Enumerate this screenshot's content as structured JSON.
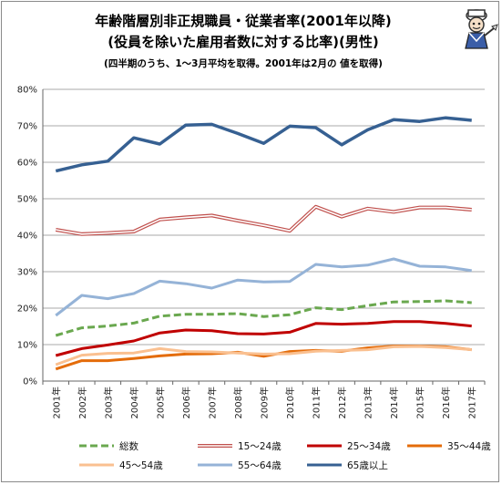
{
  "title_line1": "年齢階層別非正規職員・従業者率(2001年以降)",
  "title_line2": "(役員を除いた雇用者数に対する比率)(男性)",
  "subtitle": "(四半期のうち、1～3月平均を取得。2001年は2月の 値を取得)",
  "colors": {
    "total": "#6aa84f",
    "age15_24": "#c0504d",
    "age25_34": "#c00000",
    "age35_44": "#e46c0a",
    "age45_54": "#fac090",
    "age55_64": "#95b3d7",
    "age65plus": "#366092"
  },
  "chart_data": {
    "type": "line",
    "categories": [
      "2001年",
      "2002年",
      "2003年",
      "2004年",
      "2005年",
      "2006年",
      "2007年",
      "2008年",
      "2009年",
      "2010年",
      "2011年",
      "2012年",
      "2013年",
      "2014年",
      "2015年",
      "2016年",
      "2017年"
    ],
    "ylim": [
      0,
      80
    ],
    "yticks": [
      0,
      10,
      20,
      30,
      40,
      50,
      60,
      70,
      80
    ],
    "ytick_labels": [
      "0%",
      "10%",
      "20%",
      "30%",
      "40%",
      "50%",
      "60%",
      "70%",
      "80%"
    ],
    "grid": true,
    "legend_position": "bottom",
    "series": [
      {
        "name": "総数",
        "key": "total",
        "style": "dashed",
        "values": [
          12.5,
          14.6,
          15.1,
          15.9,
          17.8,
          18.3,
          18.3,
          18.5,
          17.7,
          18.2,
          20.1,
          19.6,
          20.7,
          21.7,
          21.8,
          22.0,
          21.5
        ]
      },
      {
        "name": "15～24歳",
        "key": "age15_24",
        "style": "double",
        "values": [
          41.5,
          40.3,
          40.6,
          41.0,
          44.3,
          44.9,
          45.4,
          44.0,
          42.7,
          41.2,
          47.8,
          45.1,
          47.3,
          46.4,
          47.6,
          47.6,
          47.0
        ]
      },
      {
        "name": "25～34歳",
        "key": "age25_34",
        "style": "solid",
        "values": [
          7.0,
          8.9,
          9.9,
          11.0,
          13.2,
          14.0,
          13.8,
          13.0,
          12.9,
          13.4,
          15.8,
          15.6,
          15.8,
          16.3,
          16.3,
          15.8,
          15.1
        ]
      },
      {
        "name": "35～44歳",
        "key": "age35_44",
        "style": "solid",
        "values": [
          3.3,
          5.6,
          5.6,
          6.2,
          6.9,
          7.4,
          7.5,
          7.9,
          6.8,
          8.1,
          8.4,
          8.2,
          9.1,
          9.6,
          9.6,
          9.4,
          8.6
        ]
      },
      {
        "name": "45～54歳",
        "key": "age45_54",
        "style": "solid",
        "values": [
          4.5,
          7.1,
          7.6,
          7.7,
          8.9,
          8.1,
          8.0,
          7.7,
          7.4,
          7.5,
          8.2,
          8.4,
          8.6,
          9.4,
          9.5,
          9.2,
          8.6
        ]
      },
      {
        "name": "55～64歳",
        "key": "age55_64",
        "style": "solid",
        "values": [
          18.0,
          23.5,
          22.6,
          24.0,
          27.4,
          26.7,
          25.5,
          27.7,
          27.2,
          27.3,
          32.0,
          31.3,
          31.8,
          33.5,
          31.5,
          31.3,
          30.3
        ]
      },
      {
        "name": "65歳以上",
        "key": "age65plus",
        "style": "solid",
        "values": [
          57.6,
          59.3,
          60.3,
          66.7,
          65.0,
          70.2,
          70.4,
          67.9,
          65.2,
          69.9,
          69.5,
          64.8,
          68.9,
          71.7,
          71.2,
          72.2,
          71.5
        ]
      }
    ]
  }
}
